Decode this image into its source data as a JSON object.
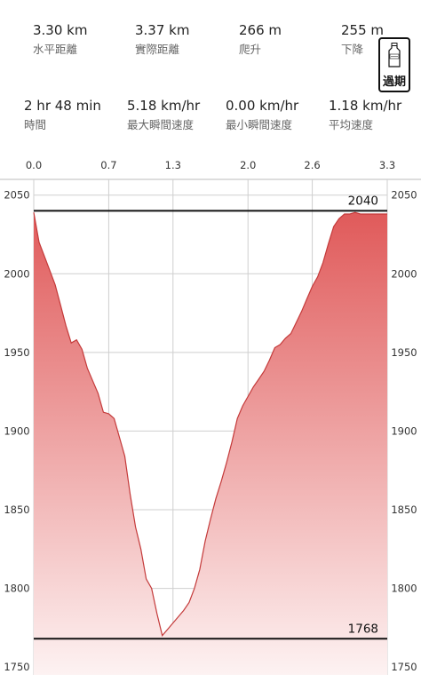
{
  "stats": [
    {
      "value": "3.30 km",
      "label": "水平距離"
    },
    {
      "value": "3.37 km",
      "label": "實際距離"
    },
    {
      "value": "266 m",
      "label": "爬升"
    },
    {
      "value": "255 m",
      "label": "下降"
    },
    {
      "value": "2 hr 48 min",
      "label": "時間"
    },
    {
      "value": "5.18 km/hr",
      "label": "最大瞬間速度"
    },
    {
      "value": "0.00 km/hr",
      "label": "最小瞬間速度"
    },
    {
      "value": "1.18 km/hr",
      "label": "平均速度"
    }
  ],
  "badge": {
    "label": "過期",
    "icon": "out-of-date-bottle-icon"
  },
  "colors": {
    "fill_top": "#e05a5a",
    "fill_bottom": "#fdf2f2",
    "line": "#c43a3a"
  },
  "chart_data": {
    "type": "area",
    "xlabel": "",
    "ylabel": "",
    "x_ticks": [
      "0.0",
      "0.7",
      "1.3",
      "2.0",
      "2.6",
      "3.3"
    ],
    "y_ticks": [
      "2050",
      "2000",
      "1950",
      "1900",
      "1850",
      "1800",
      "1750"
    ],
    "xlim": [
      0,
      3.3
    ],
    "ylim": [
      1745,
      2060
    ],
    "grid": true,
    "reference_lines": [
      {
        "label": "2040",
        "value": 2040
      },
      {
        "label": "1768",
        "value": 1768
      }
    ],
    "x": [
      0.0,
      0.05,
      0.1,
      0.15,
      0.2,
      0.25,
      0.3,
      0.35,
      0.4,
      0.45,
      0.5,
      0.55,
      0.6,
      0.65,
      0.7,
      0.75,
      0.8,
      0.85,
      0.9,
      0.95,
      1.0,
      1.05,
      1.1,
      1.15,
      1.2,
      1.25,
      1.3,
      1.35,
      1.4,
      1.45,
      1.5,
      1.55,
      1.6,
      1.65,
      1.7,
      1.75,
      1.8,
      1.85,
      1.9,
      1.95,
      2.0,
      2.05,
      2.1,
      2.15,
      2.2,
      2.25,
      2.3,
      2.35,
      2.4,
      2.45,
      2.5,
      2.55,
      2.6,
      2.65,
      2.7,
      2.75,
      2.8,
      2.85,
      2.9,
      2.95,
      3.0,
      3.05,
      3.1,
      3.15,
      3.2,
      3.25,
      3.3
    ],
    "values": [
      2039,
      2020,
      2011,
      2002,
      1993,
      1980,
      1967,
      1956,
      1958,
      1952,
      1940,
      1932,
      1924,
      1912,
      1911,
      1908,
      1896,
      1884,
      1860,
      1839,
      1825,
      1806,
      1800,
      1784,
      1770,
      1774,
      1778,
      1782,
      1786,
      1791,
      1800,
      1812,
      1830,
      1844,
      1857,
      1868,
      1880,
      1893,
      1908,
      1916,
      1922,
      1928,
      1933,
      1938,
      1945,
      1953,
      1955,
      1959,
      1962,
      1969,
      1976,
      1984,
      1992,
      1998,
      2007,
      2019,
      2030,
      2035,
      2038,
      2038,
      2039,
      2038,
      2038,
      2038,
      2038,
      2038,
      2038
    ]
  }
}
